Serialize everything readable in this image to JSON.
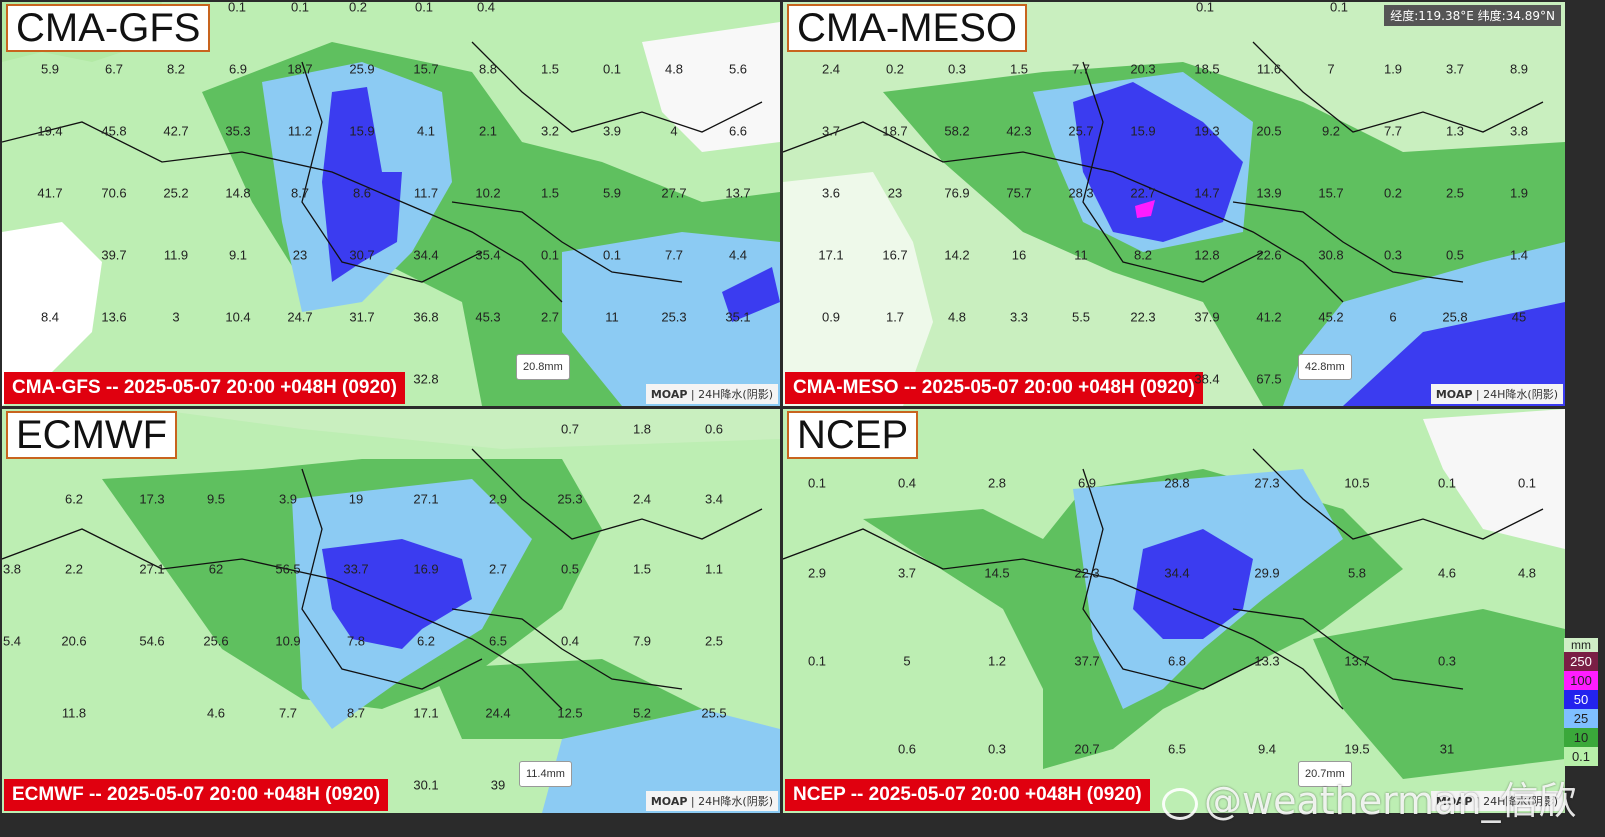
{
  "coord_readout": "经度:119.38°E 纬度:34.89°N",
  "moap_prefix": "MOAP",
  "moap_suffix": " | 24H降水(阴影)",
  "legend": {
    "unit": "mm",
    "steps": [
      {
        "label": "250",
        "color": "#7a1f45"
      },
      {
        "label": "100",
        "color": "#ff1cff"
      },
      {
        "label": "50",
        "color": "#2323ee"
      },
      {
        "label": "25",
        "color": "#7fbfff"
      },
      {
        "label": "10",
        "color": "#3aa83a"
      },
      {
        "label": "0.1",
        "color": "#b7f0a9"
      }
    ]
  },
  "watermark": "@weatherman_信欣",
  "panels": [
    {
      "id": "cma-gfs",
      "model": "CMA-GFS",
      "banner": "CMA-GFS -- 2025-05-07 20:00 +048H (0920)",
      "scale": "20.8mm",
      "values": [
        "0.1",
        "0.1",
        "0.2",
        "0.1",
        "0.4",
        "5.9",
        "6.7",
        "8.2",
        "6.9",
        "18.7",
        "25.9",
        "15.7",
        "8.8",
        "1.5",
        "0.1",
        "4.8",
        "5.6",
        "19.4",
        "45.8",
        "42.7",
        "35.3",
        "11.2",
        "15.9",
        "4.1",
        "2.1",
        "3.2",
        "3.9",
        "4",
        "6.6",
        "41.7",
        "70.6",
        "25.2",
        "14.8",
        "8.7",
        "8.6",
        "11.7",
        "10.2",
        "1.5",
        "5.9",
        "27.7",
        "13.7",
        "39.7",
        "11.9",
        "9.1",
        "23",
        "30.7",
        "34.4",
        "35.4",
        "0.1",
        "0.1",
        "7.7",
        "4.4",
        "8.4",
        "13.6",
        "3",
        "10.4",
        "24.7",
        "31.7",
        "36.8",
        "45.3",
        "2.7",
        "11",
        "25.3",
        "35.1",
        "32.8"
      ]
    },
    {
      "id": "cma-meso",
      "model": "CMA-MESO",
      "banner": "CMA-MESO -- 2025-05-07 20:00 +048H (0920)",
      "scale": "42.8mm",
      "values": [
        "0.1",
        "0.1",
        "2.4",
        "0.2",
        "0.3",
        "1.5",
        "7.7",
        "20.3",
        "18.5",
        "11.6",
        "7",
        "1.9",
        "3.7",
        "8.9",
        "3.7",
        "18.7",
        "58.2",
        "42.3",
        "25.7",
        "15.9",
        "19.3",
        "20.5",
        "9.2",
        "7.7",
        "1.3",
        "3.8",
        "3.6",
        "23",
        "76.9",
        "75.7",
        "28.3",
        "22.7",
        "14.7",
        "13.9",
        "15.7",
        "0.2",
        "2.5",
        "1.9",
        "17.1",
        "16.7",
        "14.2",
        "16",
        "11",
        "8.2",
        "12.8",
        "22.6",
        "30.8",
        "0.3",
        "0.5",
        "1.4",
        "0.9",
        "1.7",
        "4.8",
        "3.3",
        "5.5",
        "22.3",
        "37.9",
        "41.2",
        "45.2",
        "6",
        "25.8",
        "45",
        "38.4",
        "67.5"
      ]
    },
    {
      "id": "ecmwf",
      "model": "ECMWF",
      "banner": "ECMWF -- 2025-05-07 20:00 +048H (0920)",
      "scale": "11.4mm",
      "values": [
        "0.7",
        "1.8",
        "0.6",
        "6.2",
        "17.3",
        "9.5",
        "3.9",
        "19",
        "27.1",
        "2.9",
        "25.3",
        "2.4",
        "3.4",
        "3.8",
        "2.2",
        "27.1",
        "62",
        "56.5",
        "33.7",
        "16.9",
        "2.7",
        "0.5",
        "1.5",
        "1.1",
        "5.4",
        "20.6",
        "54.6",
        "25.6",
        "10.9",
        "7.8",
        "6.2",
        "6.5",
        "0.4",
        "7.9",
        "2.5",
        "11.8",
        "4.6",
        "7.7",
        "8.7",
        "17.1",
        "24.4",
        "12.5",
        "5.2",
        "25.5",
        "30.1",
        "39"
      ]
    },
    {
      "id": "ncep",
      "model": "NCEP",
      "banner": "NCEP -- 2025-05-07 20:00 +048H (0920)",
      "scale": "20.7mm",
      "values": [
        "0.1",
        "0.4",
        "2.8",
        "6.9",
        "28.8",
        "27.3",
        "10.5",
        "0.1",
        "0.1",
        "2.9",
        "3.7",
        "14.5",
        "22.3",
        "34.4",
        "29.9",
        "5.8",
        "4.6",
        "4.8",
        "0.1",
        "5",
        "1.2",
        "37.7",
        "6.8",
        "13.3",
        "13.7",
        "0.3",
        "0.6",
        "0.3",
        "20.7",
        "6.5",
        "9.4",
        "19.5",
        "31"
      ]
    }
  ]
}
